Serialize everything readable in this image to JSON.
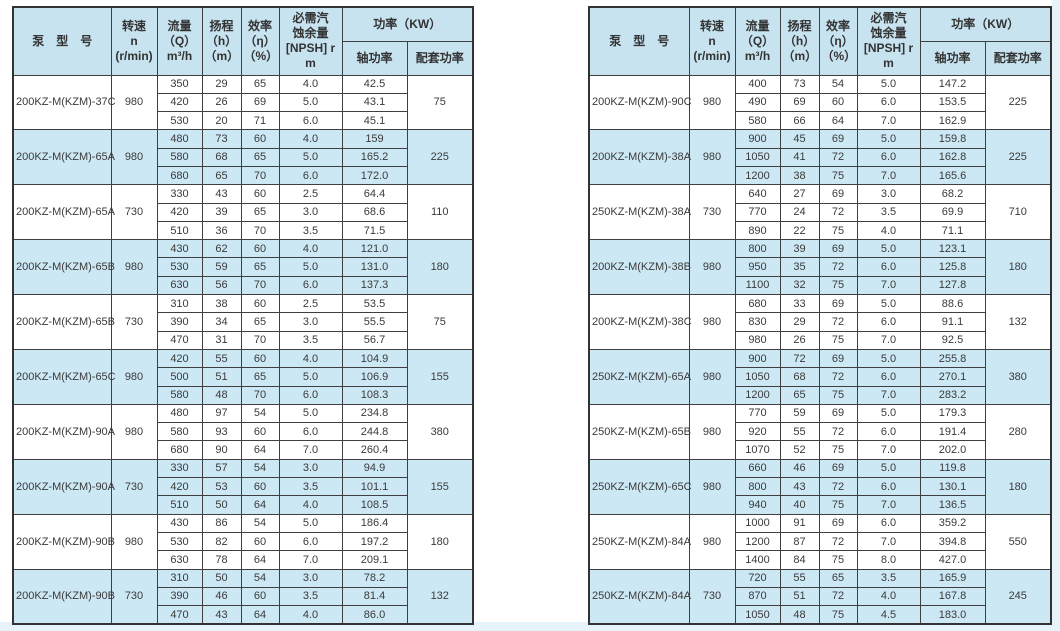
{
  "colors": {
    "header_bg": "#c7e3f0",
    "highlight_row_bg": "#cde8f5",
    "normal_row_bg": "#ffffff",
    "grid_line": "#3f3f3f",
    "page_edge": "#e7f3fa",
    "text": "#3a3a3a"
  },
  "header": {
    "model": "泵　型　号",
    "speed_lines": [
      "转速",
      "n",
      "(r/min)"
    ],
    "flow_lines": [
      "流量",
      "（Q）",
      "m³/h"
    ],
    "head_lines": [
      "扬程",
      "（h）",
      "（m）"
    ],
    "eff_lines": [
      "效率",
      "（η）",
      "（%）"
    ],
    "npsh_lines": [
      "必需汽",
      "蚀余量",
      "[NPSH] r",
      "m"
    ],
    "power": "功率（KW）",
    "shaft": "轴功率",
    "matched": "配套功率"
  },
  "tables": {
    "left": {
      "groups": [
        {
          "model": "200KZ-M(KZM)-37C",
          "speed": "980",
          "highlight": false,
          "matched": "75",
          "rows": [
            [
              "350",
              "29",
              "65",
              "4.0",
              "42.5"
            ],
            [
              "420",
              "26",
              "69",
              "5.0",
              "43.1"
            ],
            [
              "530",
              "20",
              "71",
              "6.0",
              "45.1"
            ]
          ]
        },
        {
          "model": "200KZ-M(KZM)-65A",
          "speed": "980",
          "highlight": true,
          "matched": "225",
          "rows": [
            [
              "480",
              "73",
              "60",
              "4.0",
              "159"
            ],
            [
              "580",
              "68",
              "65",
              "5.0",
              "165.2"
            ],
            [
              "680",
              "65",
              "70",
              "6.0",
              "172.0"
            ]
          ]
        },
        {
          "model": "200KZ-M(KZM)-65A",
          "speed": "730",
          "highlight": false,
          "matched": "110",
          "rows": [
            [
              "330",
              "43",
              "60",
              "2.5",
              "64.4"
            ],
            [
              "420",
              "39",
              "65",
              "3.0",
              "68.6"
            ],
            [
              "510",
              "36",
              "70",
              "3.5",
              "71.5"
            ]
          ]
        },
        {
          "model": "200KZ-M(KZM)-65B",
          "speed": "980",
          "highlight": true,
          "matched": "180",
          "rows": [
            [
              "430",
              "62",
              "60",
              "4.0",
              "121.0"
            ],
            [
              "530",
              "59",
              "65",
              "5.0",
              "131.0"
            ],
            [
              "630",
              "56",
              "70",
              "6.0",
              "137.3"
            ]
          ]
        },
        {
          "model": "200KZ-M(KZM)-65B",
          "speed": "730",
          "highlight": false,
          "matched": "75",
          "rows": [
            [
              "310",
              "38",
              "60",
              "2.5",
              "53.5"
            ],
            [
              "390",
              "34",
              "65",
              "3.0",
              "55.5"
            ],
            [
              "470",
              "31",
              "70",
              "3.5",
              "56.7"
            ]
          ]
        },
        {
          "model": "200KZ-M(KZM)-65C",
          "speed": "980",
          "highlight": true,
          "matched": "155",
          "rows": [
            [
              "420",
              "55",
              "60",
              "4.0",
              "104.9"
            ],
            [
              "500",
              "51",
              "65",
              "5.0",
              "106.9"
            ],
            [
              "580",
              "48",
              "70",
              "6.0",
              "108.3"
            ]
          ]
        },
        {
          "model": "200KZ-M(KZM)-90A",
          "speed": "980",
          "highlight": false,
          "matched": "380",
          "rows": [
            [
              "480",
              "97",
              "54",
              "5.0",
              "234.8"
            ],
            [
              "580",
              "93",
              "60",
              "6.0",
              "244.8"
            ],
            [
              "680",
              "90",
              "64",
              "7.0",
              "260.4"
            ]
          ]
        },
        {
          "model": "200KZ-M(KZM)-90A",
          "speed": "730",
          "highlight": true,
          "matched": "155",
          "rows": [
            [
              "330",
              "57",
              "54",
              "3.0",
              "94.9"
            ],
            [
              "420",
              "53",
              "60",
              "3.5",
              "101.1"
            ],
            [
              "510",
              "50",
              "64",
              "4.0",
              "108.5"
            ]
          ]
        },
        {
          "model": "200KZ-M(KZM)-90B",
          "speed": "980",
          "highlight": false,
          "matched": "180",
          "rows": [
            [
              "430",
              "86",
              "54",
              "5.0",
              "186.4"
            ],
            [
              "530",
              "82",
              "60",
              "6.0",
              "197.2"
            ],
            [
              "630",
              "78",
              "64",
              "7.0",
              "209.1"
            ]
          ]
        },
        {
          "model": "200KZ-M(KZM)-90B",
          "speed": "730",
          "highlight": true,
          "matched": "132",
          "rows": [
            [
              "310",
              "50",
              "54",
              "3.0",
              "78.2"
            ],
            [
              "390",
              "46",
              "60",
              "3.5",
              "81.4"
            ],
            [
              "470",
              "43",
              "64",
              "4.0",
              "86.0"
            ]
          ]
        }
      ]
    },
    "right": {
      "groups": [
        {
          "model": "200KZ-M(KZM)-90C",
          "speed": "980",
          "highlight": false,
          "matched": "225",
          "rows": [
            [
              "400",
              "73",
              "54",
              "5.0",
              "147.2"
            ],
            [
              "490",
              "69",
              "60",
              "6.0",
              "153.5"
            ],
            [
              "580",
              "66",
              "64",
              "7.0",
              "162.9"
            ]
          ]
        },
        {
          "model": "200KZ-M(KZM)-38A",
          "speed": "980",
          "highlight": true,
          "matched": "225",
          "rows": [
            [
              "900",
              "45",
              "69",
              "5.0",
              "159.8"
            ],
            [
              "1050",
              "41",
              "72",
              "6.0",
              "162.8"
            ],
            [
              "1200",
              "38",
              "75",
              "7.0",
              "165.6"
            ]
          ]
        },
        {
          "model": "250KZ-M(KZM)-38A",
          "speed": "730",
          "highlight": false,
          "matched": "710",
          "rows": [
            [
              "640",
              "27",
              "69",
              "3.0",
              "68.2"
            ],
            [
              "770",
              "24",
              "72",
              "3.5",
              "69.9"
            ],
            [
              "890",
              "22",
              "75",
              "4.0",
              "71.1"
            ]
          ]
        },
        {
          "model": "200KZ-M(KZM)-38B",
          "speed": "980",
          "highlight": true,
          "matched": "180",
          "rows": [
            [
              "800",
              "39",
              "69",
              "5.0",
              "123.1"
            ],
            [
              "950",
              "35",
              "72",
              "6.0",
              "125.8"
            ],
            [
              "1100",
              "32",
              "75",
              "7.0",
              "127.8"
            ]
          ]
        },
        {
          "model": "200KZ-M(KZM)-38C",
          "speed": "980",
          "highlight": false,
          "matched": "132",
          "rows": [
            [
              "680",
              "33",
              "69",
              "5.0",
              "88.6"
            ],
            [
              "830",
              "29",
              "72",
              "6.0",
              "91.1"
            ],
            [
              "980",
              "26",
              "75",
              "7.0",
              "92.5"
            ]
          ]
        },
        {
          "model": "250KZ-M(KZM)-65A",
          "speed": "980",
          "highlight": true,
          "matched": "380",
          "rows": [
            [
              "900",
              "72",
              "69",
              "5.0",
              "255.8"
            ],
            [
              "1050",
              "68",
              "72",
              "6.0",
              "270.1"
            ],
            [
              "1200",
              "65",
              "75",
              "7.0",
              "283.2"
            ]
          ]
        },
        {
          "model": "250KZ-M(KZM)-65B",
          "speed": "980",
          "highlight": false,
          "matched": "280",
          "rows": [
            [
              "770",
              "59",
              "69",
              "5.0",
              "179.3"
            ],
            [
              "920",
              "55",
              "72",
              "6.0",
              "191.4"
            ],
            [
              "1070",
              "52",
              "75",
              "7.0",
              "202.0"
            ]
          ]
        },
        {
          "model": "250KZ-M(KZM)-65C",
          "speed": "980",
          "highlight": true,
          "matched": "180",
          "rows": [
            [
              "660",
              "46",
              "69",
              "5.0",
              "119.8"
            ],
            [
              "800",
              "43",
              "72",
              "6.0",
              "130.1"
            ],
            [
              "940",
              "40",
              "75",
              "7.0",
              "136.5"
            ]
          ]
        },
        {
          "model": "250KZ-M(KZM)-84A",
          "speed": "980",
          "highlight": false,
          "matched": "550",
          "rows": [
            [
              "1000",
              "91",
              "69",
              "6.0",
              "359.2"
            ],
            [
              "1200",
              "87",
              "72",
              "7.0",
              "394.8"
            ],
            [
              "1400",
              "84",
              "75",
              "8.0",
              "427.0"
            ]
          ]
        },
        {
          "model": "250KZ-M(KZM)-84A",
          "speed": "730",
          "highlight": true,
          "matched": "245",
          "rows": [
            [
              "720",
              "55",
              "65",
              "3.5",
              "165.9"
            ],
            [
              "870",
              "51",
              "72",
              "4.0",
              "167.8"
            ],
            [
              "1050",
              "48",
              "75",
              "4.5",
              "183.0"
            ]
          ]
        }
      ]
    }
  }
}
